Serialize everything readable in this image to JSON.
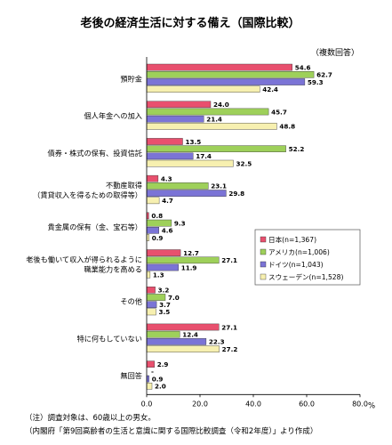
{
  "chart_data": {
    "type": "bar",
    "orientation": "horizontal",
    "title": "老後の経済生活に対する備え（国際比較）",
    "subtitle": "（複数回答）",
    "unit_label": "%",
    "xlim": [
      0,
      80
    ],
    "x_ticks": [
      "0.0",
      "20.0",
      "40.0",
      "60.0",
      "80.0"
    ],
    "grid": false,
    "legend_position": "right",
    "categories": [
      [
        "預貯金"
      ],
      [
        "個人年金への加入"
      ],
      [
        "債券・株式の保有、投資信託"
      ],
      [
        "不動産取得",
        "（賃貸収入を得るための取得等）"
      ],
      [
        "貴金属の保有（金、宝石等）"
      ],
      [
        "老後も働いて収入が得られるように",
        "職業能力を高める"
      ],
      [
        "その他"
      ],
      [
        "特に何もしていない"
      ],
      [
        "無回答"
      ]
    ],
    "series": [
      {
        "name": "日本(n=1,367)",
        "color": "#e8506e",
        "values": [
          54.6,
          24.0,
          13.5,
          4.3,
          0.8,
          12.7,
          3.2,
          27.1,
          2.9
        ],
        "labels": [
          "54.6",
          "24.0",
          "13.5",
          "4.3",
          "0.8",
          "12.7",
          "3.2",
          "27.1",
          "2.9"
        ]
      },
      {
        "name": "アメリカ(n=1,006)",
        "color": "#9ed05a",
        "values": [
          62.7,
          45.7,
          52.2,
          23.1,
          9.3,
          27.1,
          7.0,
          12.4,
          0.0
        ],
        "labels": [
          "62.7",
          "45.7",
          "52.2",
          "23.1",
          "9.3",
          "27.1",
          "7.0",
          "12.4",
          "-"
        ]
      },
      {
        "name": "ドイツ(n=1,043)",
        "color": "#7b74d6",
        "values": [
          59.3,
          21.4,
          17.4,
          29.8,
          4.6,
          11.9,
          3.7,
          22.3,
          0.9
        ],
        "labels": [
          "59.3",
          "21.4",
          "17.4",
          "29.8",
          "4.6",
          "11.9",
          "3.7",
          "22.3",
          "0.9"
        ]
      },
      {
        "name": "スウェーデン(n=1,528)",
        "color": "#f7f0b0",
        "values": [
          42.4,
          48.8,
          32.5,
          4.7,
          0.9,
          1.3,
          3.5,
          27.2,
          2.0
        ],
        "labels": [
          "42.4",
          "48.8",
          "32.5",
          "4.7",
          "0.9",
          "1.3",
          "3.5",
          "27.2",
          "2.0"
        ]
      }
    ]
  },
  "notes": [
    "（注）調査対象は、60歳以上の男女。",
    "（内閣府「第9回高齢者の生活と意識に関する国際比較調査（令和2年度）」より作成）"
  ]
}
